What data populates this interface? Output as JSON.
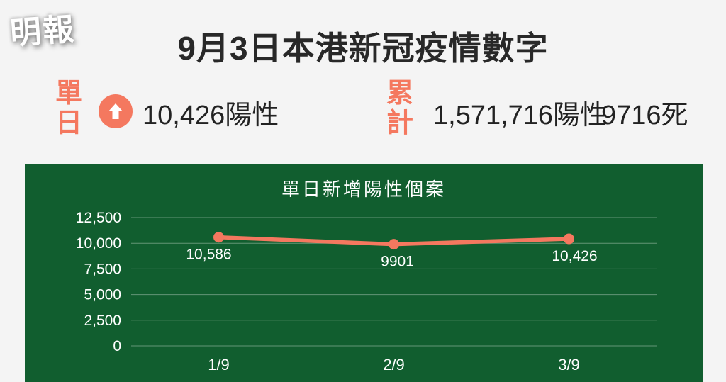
{
  "brand": {
    "logo_text": "明報"
  },
  "header": {
    "title": "9月3日本港新冠疫情數字"
  },
  "stats": {
    "daily": {
      "label": "單日",
      "trend_icon": "up-arrow",
      "value": "10,426陽性"
    },
    "cumulative": {
      "label": "累計",
      "positive": "1,571,716陽性",
      "deaths": "9716死"
    }
  },
  "chart_data": {
    "type": "line",
    "title": "單日新增陽性個案",
    "categories": [
      "1/9",
      "2/9",
      "3/9"
    ],
    "values": [
      10586,
      9901,
      10426
    ],
    "point_labels": [
      "10,586",
      "9901",
      "10,426"
    ],
    "y_ticks": [
      {
        "value": 12500,
        "label": "12,500"
      },
      {
        "value": 10000,
        "label": "10,000"
      },
      {
        "value": 7500,
        "label": "7,500"
      },
      {
        "value": 5000,
        "label": "5,000"
      },
      {
        "value": 2500,
        "label": "2,500"
      },
      {
        "value": 0,
        "label": "0"
      }
    ],
    "ylim": [
      0,
      12500
    ],
    "grid": true,
    "legend": false,
    "line_color": "#f4785f",
    "panel_color": "#115e2f",
    "chart_text_color": "#ffffff"
  },
  "colors": {
    "accent": "#f4785f",
    "panel_green": "#115e2f",
    "background": "#f4f4f4",
    "text_dark": "#282828"
  }
}
